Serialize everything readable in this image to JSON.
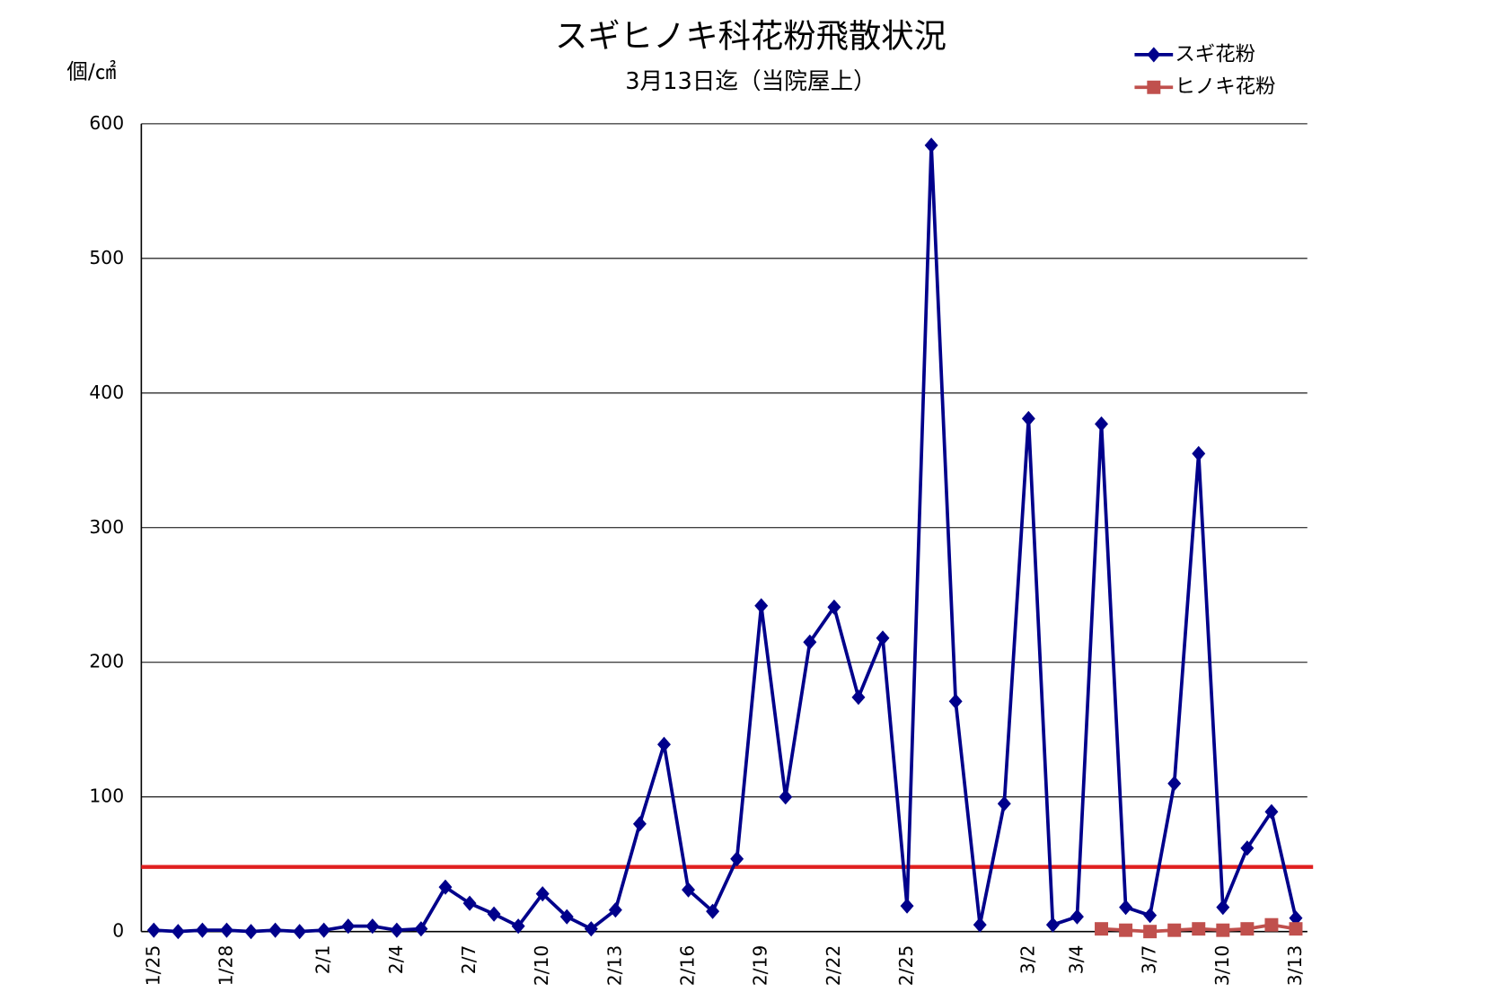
{
  "chart_data": {
    "type": "line",
    "title": "スギヒノキ科花粉飛散状況",
    "subtitle": "3月13日迄（当院屋上）",
    "y_axis_label": "個/㎠",
    "categories": [
      "1/25",
      null,
      null,
      "1/28",
      null,
      null,
      null,
      "2/1",
      null,
      null,
      "2/4",
      null,
      null,
      "2/7",
      null,
      null,
      "2/10",
      null,
      null,
      "2/13",
      null,
      null,
      "2/16",
      null,
      null,
      "2/19",
      null,
      null,
      "2/22",
      null,
      null,
      "2/25",
      null,
      null,
      null,
      null,
      "3/2",
      null,
      "3/4",
      null,
      null,
      "3/7",
      null,
      null,
      "3/10",
      null,
      null,
      "3/13"
    ],
    "series": [
      {
        "name": "スギ花粉",
        "color": "#00008b",
        "marker": "diamond",
        "values": [
          1,
          0,
          1,
          1,
          0,
          1,
          0,
          1,
          4,
          4,
          1,
          2,
          33,
          21,
          13,
          4,
          28,
          11,
          2,
          16,
          80,
          139,
          31,
          15,
          54,
          242,
          100,
          215,
          241,
          174,
          218,
          19,
          584,
          171,
          5,
          95,
          381,
          5,
          11,
          377,
          18,
          12,
          110,
          355,
          18,
          62,
          89,
          10
        ]
      },
      {
        "name": "ヒノキ花粉",
        "color": "#c0504d",
        "marker": "square",
        "values": [
          null,
          null,
          null,
          null,
          null,
          null,
          null,
          null,
          null,
          null,
          null,
          null,
          null,
          null,
          null,
          null,
          null,
          null,
          null,
          null,
          null,
          null,
          null,
          null,
          null,
          null,
          null,
          null,
          null,
          null,
          null,
          null,
          null,
          null,
          null,
          null,
          null,
          null,
          null,
          2,
          1,
          0,
          1,
          2,
          1,
          2,
          5,
          2
        ]
      }
    ],
    "reference_line": {
      "value": 48,
      "color": "#e02020"
    },
    "ylim": [
      0,
      600
    ],
    "yticks": [
      0,
      100,
      200,
      300,
      400,
      500,
      600
    ],
    "grid": true,
    "legend": "top-right"
  }
}
